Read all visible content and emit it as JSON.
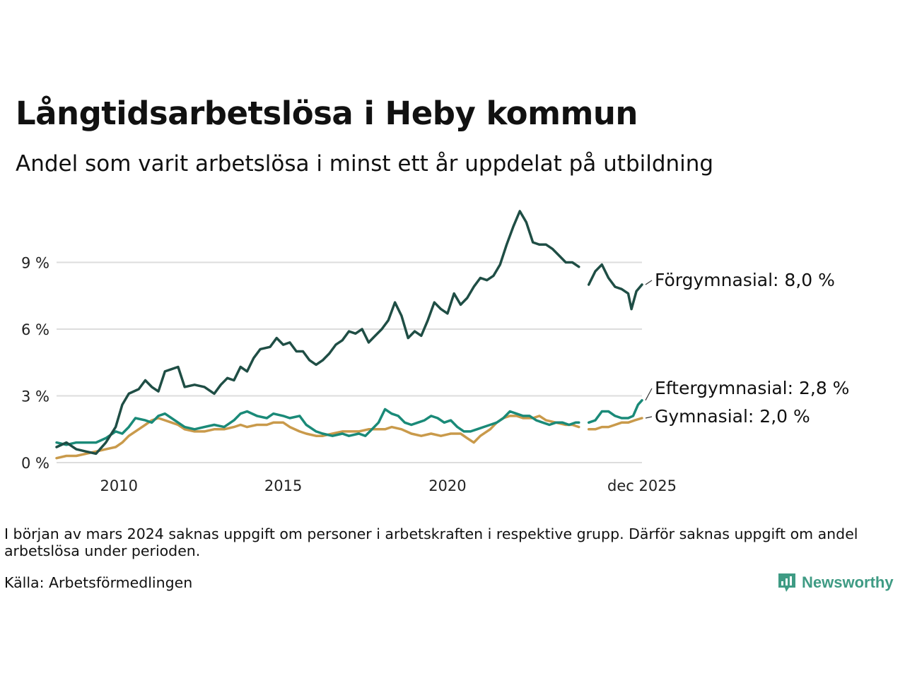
{
  "header": {
    "title": "Långtidsarbetslösa i Heby kommun",
    "subtitle": "Andel som varit arbetslösa i minst ett år uppdelat på utbildning"
  },
  "footer": {
    "note": "I början av mars 2024 saknas uppgift om personer i arbetskraften i respektive grupp. Därför saknas uppgift om andel arbetslösa under perioden.",
    "source": "Källa: Arbetsförmedlingen",
    "logo_text": "Newsworthy",
    "brand_color": "#3f9b84"
  },
  "chart_data": {
    "type": "line",
    "title": "Långtidsarbetslösa i Heby kommun",
    "subtitle": "Andel som varit arbetslösa i minst ett år uppdelat på utbildning",
    "xlabel": "",
    "ylabel": "",
    "xlim": [
      2008.1,
      2025.92
    ],
    "ylim": [
      0,
      11.5
    ],
    "y_ticks": [
      0,
      3,
      6,
      9
    ],
    "y_tick_labels": [
      "0 %",
      "3 %",
      "6 %",
      "9 %"
    ],
    "x_ticks": [
      2010,
      2015,
      2020,
      2025.92
    ],
    "x_tick_labels": [
      "2010",
      "2015",
      "2020",
      "dec 2025"
    ],
    "grid": true,
    "gap": {
      "from": 2024.0,
      "to": 2024.3
    },
    "series": [
      {
        "name": "Förgymnasial",
        "end_label": "Förgymnasial: 8,0 %",
        "color": "#1f4e45",
        "points": [
          [
            2008.1,
            0.7
          ],
          [
            2008.4,
            0.9
          ],
          [
            2008.7,
            0.6
          ],
          [
            2009.0,
            0.5
          ],
          [
            2009.3,
            0.4
          ],
          [
            2009.6,
            0.9
          ],
          [
            2009.9,
            1.6
          ],
          [
            2010.1,
            2.6
          ],
          [
            2010.3,
            3.1
          ],
          [
            2010.6,
            3.3
          ],
          [
            2010.8,
            3.7
          ],
          [
            2011.0,
            3.4
          ],
          [
            2011.2,
            3.2
          ],
          [
            2011.4,
            4.1
          ],
          [
            2011.6,
            4.2
          ],
          [
            2011.8,
            4.3
          ],
          [
            2012.0,
            3.4
          ],
          [
            2012.3,
            3.5
          ],
          [
            2012.6,
            3.4
          ],
          [
            2012.9,
            3.1
          ],
          [
            2013.1,
            3.5
          ],
          [
            2013.3,
            3.8
          ],
          [
            2013.5,
            3.7
          ],
          [
            2013.7,
            4.3
          ],
          [
            2013.9,
            4.1
          ],
          [
            2014.1,
            4.7
          ],
          [
            2014.3,
            5.1
          ],
          [
            2014.6,
            5.2
          ],
          [
            2014.8,
            5.6
          ],
          [
            2015.0,
            5.3
          ],
          [
            2015.2,
            5.4
          ],
          [
            2015.4,
            5.0
          ],
          [
            2015.6,
            5.0
          ],
          [
            2015.8,
            4.6
          ],
          [
            2016.0,
            4.4
          ],
          [
            2016.2,
            4.6
          ],
          [
            2016.4,
            4.9
          ],
          [
            2016.6,
            5.3
          ],
          [
            2016.8,
            5.5
          ],
          [
            2017.0,
            5.9
          ],
          [
            2017.2,
            5.8
          ],
          [
            2017.4,
            6.0
          ],
          [
            2017.6,
            5.4
          ],
          [
            2017.8,
            5.7
          ],
          [
            2018.0,
            6.0
          ],
          [
            2018.2,
            6.4
          ],
          [
            2018.4,
            7.2
          ],
          [
            2018.6,
            6.6
          ],
          [
            2018.8,
            5.6
          ],
          [
            2019.0,
            5.9
          ],
          [
            2019.2,
            5.7
          ],
          [
            2019.4,
            6.4
          ],
          [
            2019.6,
            7.2
          ],
          [
            2019.8,
            6.9
          ],
          [
            2020.0,
            6.7
          ],
          [
            2020.2,
            7.6
          ],
          [
            2020.4,
            7.1
          ],
          [
            2020.6,
            7.4
          ],
          [
            2020.8,
            7.9
          ],
          [
            2021.0,
            8.3
          ],
          [
            2021.2,
            8.2
          ],
          [
            2021.4,
            8.4
          ],
          [
            2021.6,
            8.9
          ],
          [
            2021.8,
            9.8
          ],
          [
            2022.0,
            10.6
          ],
          [
            2022.2,
            11.3
          ],
          [
            2022.4,
            10.8
          ],
          [
            2022.6,
            9.9
          ],
          [
            2022.8,
            9.8
          ],
          [
            2023.0,
            9.8
          ],
          [
            2023.2,
            9.6
          ],
          [
            2023.4,
            9.3
          ],
          [
            2023.6,
            9.0
          ],
          [
            2023.8,
            9.0
          ],
          [
            2024.0,
            8.8
          ],
          null,
          [
            2024.3,
            8.0
          ],
          [
            2024.5,
            8.6
          ],
          [
            2024.7,
            8.9
          ],
          [
            2024.9,
            8.3
          ],
          [
            2025.1,
            7.9
          ],
          [
            2025.3,
            7.8
          ],
          [
            2025.5,
            7.6
          ],
          [
            2025.6,
            6.9
          ],
          [
            2025.75,
            7.7
          ],
          [
            2025.92,
            8.0
          ]
        ]
      },
      {
        "name": "Eftergymnasial",
        "end_label": "Eftergymnasial: 2,8 %",
        "color": "#1a8a78",
        "points": [
          [
            2008.1,
            0.9
          ],
          [
            2008.4,
            0.8
          ],
          [
            2008.7,
            0.9
          ],
          [
            2009.0,
            0.9
          ],
          [
            2009.3,
            0.9
          ],
          [
            2009.6,
            1.1
          ],
          [
            2009.9,
            1.4
          ],
          [
            2010.1,
            1.3
          ],
          [
            2010.3,
            1.6
          ],
          [
            2010.5,
            2.0
          ],
          [
            2010.8,
            1.9
          ],
          [
            2011.0,
            1.8
          ],
          [
            2011.2,
            2.1
          ],
          [
            2011.4,
            2.2
          ],
          [
            2011.6,
            2.0
          ],
          [
            2011.8,
            1.8
          ],
          [
            2012.0,
            1.6
          ],
          [
            2012.3,
            1.5
          ],
          [
            2012.6,
            1.6
          ],
          [
            2012.9,
            1.7
          ],
          [
            2013.2,
            1.6
          ],
          [
            2013.5,
            1.9
          ],
          [
            2013.7,
            2.2
          ],
          [
            2013.9,
            2.3
          ],
          [
            2014.2,
            2.1
          ],
          [
            2014.5,
            2.0
          ],
          [
            2014.7,
            2.2
          ],
          [
            2015.0,
            2.1
          ],
          [
            2015.2,
            2.0
          ],
          [
            2015.5,
            2.1
          ],
          [
            2015.7,
            1.7
          ],
          [
            2016.0,
            1.4
          ],
          [
            2016.2,
            1.3
          ],
          [
            2016.5,
            1.2
          ],
          [
            2016.8,
            1.3
          ],
          [
            2017.0,
            1.2
          ],
          [
            2017.3,
            1.3
          ],
          [
            2017.5,
            1.2
          ],
          [
            2017.7,
            1.5
          ],
          [
            2017.9,
            1.8
          ],
          [
            2018.1,
            2.4
          ],
          [
            2018.3,
            2.2
          ],
          [
            2018.5,
            2.1
          ],
          [
            2018.7,
            1.8
          ],
          [
            2018.9,
            1.7
          ],
          [
            2019.1,
            1.8
          ],
          [
            2019.3,
            1.9
          ],
          [
            2019.5,
            2.1
          ],
          [
            2019.7,
            2.0
          ],
          [
            2019.9,
            1.8
          ],
          [
            2020.1,
            1.9
          ],
          [
            2020.3,
            1.6
          ],
          [
            2020.5,
            1.4
          ],
          [
            2020.7,
            1.4
          ],
          [
            2020.9,
            1.5
          ],
          [
            2021.1,
            1.6
          ],
          [
            2021.3,
            1.7
          ],
          [
            2021.5,
            1.8
          ],
          [
            2021.7,
            2.0
          ],
          [
            2021.9,
            2.3
          ],
          [
            2022.1,
            2.2
          ],
          [
            2022.3,
            2.1
          ],
          [
            2022.5,
            2.1
          ],
          [
            2022.7,
            1.9
          ],
          [
            2022.9,
            1.8
          ],
          [
            2023.1,
            1.7
          ],
          [
            2023.3,
            1.8
          ],
          [
            2023.5,
            1.8
          ],
          [
            2023.7,
            1.7
          ],
          [
            2023.9,
            1.8
          ],
          [
            2024.0,
            1.8
          ],
          null,
          [
            2024.3,
            1.8
          ],
          [
            2024.5,
            1.9
          ],
          [
            2024.7,
            2.3
          ],
          [
            2024.9,
            2.3
          ],
          [
            2025.1,
            2.1
          ],
          [
            2025.3,
            2.0
          ],
          [
            2025.5,
            2.0
          ],
          [
            2025.65,
            2.1
          ],
          [
            2025.8,
            2.6
          ],
          [
            2025.92,
            2.8
          ]
        ]
      },
      {
        "name": "Gymnasial",
        "end_label": "Gymnasial: 2,0 %",
        "color": "#c99a4b",
        "points": [
          [
            2008.1,
            0.2
          ],
          [
            2008.4,
            0.3
          ],
          [
            2008.7,
            0.3
          ],
          [
            2009.0,
            0.4
          ],
          [
            2009.3,
            0.5
          ],
          [
            2009.6,
            0.6
          ],
          [
            2009.9,
            0.7
          ],
          [
            2010.1,
            0.9
          ],
          [
            2010.3,
            1.2
          ],
          [
            2010.6,
            1.5
          ],
          [
            2010.8,
            1.7
          ],
          [
            2011.0,
            1.9
          ],
          [
            2011.2,
            2.0
          ],
          [
            2011.4,
            1.9
          ],
          [
            2011.6,
            1.8
          ],
          [
            2011.8,
            1.7
          ],
          [
            2012.0,
            1.5
          ],
          [
            2012.3,
            1.4
          ],
          [
            2012.6,
            1.4
          ],
          [
            2012.9,
            1.5
          ],
          [
            2013.2,
            1.5
          ],
          [
            2013.5,
            1.6
          ],
          [
            2013.7,
            1.7
          ],
          [
            2013.9,
            1.6
          ],
          [
            2014.2,
            1.7
          ],
          [
            2014.5,
            1.7
          ],
          [
            2014.7,
            1.8
          ],
          [
            2015.0,
            1.8
          ],
          [
            2015.2,
            1.6
          ],
          [
            2015.5,
            1.4
          ],
          [
            2015.7,
            1.3
          ],
          [
            2016.0,
            1.2
          ],
          [
            2016.2,
            1.2
          ],
          [
            2016.5,
            1.3
          ],
          [
            2016.8,
            1.4
          ],
          [
            2017.0,
            1.4
          ],
          [
            2017.3,
            1.4
          ],
          [
            2017.6,
            1.5
          ],
          [
            2017.9,
            1.5
          ],
          [
            2018.1,
            1.5
          ],
          [
            2018.3,
            1.6
          ],
          [
            2018.6,
            1.5
          ],
          [
            2018.9,
            1.3
          ],
          [
            2019.2,
            1.2
          ],
          [
            2019.5,
            1.3
          ],
          [
            2019.8,
            1.2
          ],
          [
            2020.1,
            1.3
          ],
          [
            2020.4,
            1.3
          ],
          [
            2020.6,
            1.1
          ],
          [
            2020.8,
            0.9
          ],
          [
            2021.0,
            1.2
          ],
          [
            2021.3,
            1.5
          ],
          [
            2021.5,
            1.8
          ],
          [
            2021.7,
            2.0
          ],
          [
            2021.9,
            2.1
          ],
          [
            2022.1,
            2.1
          ],
          [
            2022.3,
            2.0
          ],
          [
            2022.6,
            2.0
          ],
          [
            2022.8,
            2.1
          ],
          [
            2023.0,
            1.9
          ],
          [
            2023.3,
            1.8
          ],
          [
            2023.6,
            1.7
          ],
          [
            2023.8,
            1.7
          ],
          [
            2024.0,
            1.6
          ],
          null,
          [
            2024.3,
            1.5
          ],
          [
            2024.5,
            1.5
          ],
          [
            2024.7,
            1.6
          ],
          [
            2024.9,
            1.6
          ],
          [
            2025.1,
            1.7
          ],
          [
            2025.3,
            1.8
          ],
          [
            2025.5,
            1.8
          ],
          [
            2025.7,
            1.9
          ],
          [
            2025.92,
            2.0
          ]
        ]
      }
    ]
  }
}
